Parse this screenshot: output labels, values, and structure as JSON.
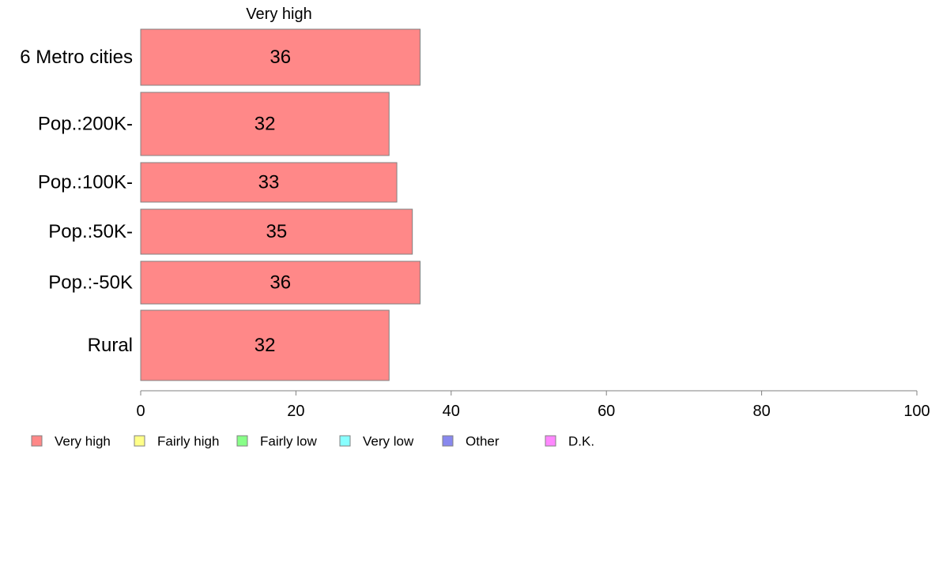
{
  "chart_data": {
    "type": "bar",
    "orientation": "horizontal",
    "stacked": true,
    "column_header": "Very high",
    "categories": [
      "6 Metro cities",
      "Pop.:200K-",
      "Pop.:100K-",
      "Pop.:50K-",
      "Pop.:-50K",
      "Rural"
    ],
    "series": [
      {
        "name": "Very high",
        "color": "#ff8888",
        "values": [
          36,
          32,
          33,
          35,
          36,
          32
        ]
      }
    ],
    "xlim": [
      0,
      100
    ],
    "xticks": [
      0,
      20,
      40,
      60,
      80,
      100
    ],
    "grid": false,
    "legend": {
      "position": "bottom-left",
      "items": [
        {
          "label": "Very high",
          "color": "#ff8888"
        },
        {
          "label": "Fairly high",
          "color": "#ffff88"
        },
        {
          "label": "Fairly low",
          "color": "#88ff88"
        },
        {
          "label": "Very low",
          "color": "#88ffff"
        },
        {
          "label": "Other",
          "color": "#8888ee"
        },
        {
          "label": "D.K.",
          "color": "#ff88ff"
        }
      ]
    }
  }
}
